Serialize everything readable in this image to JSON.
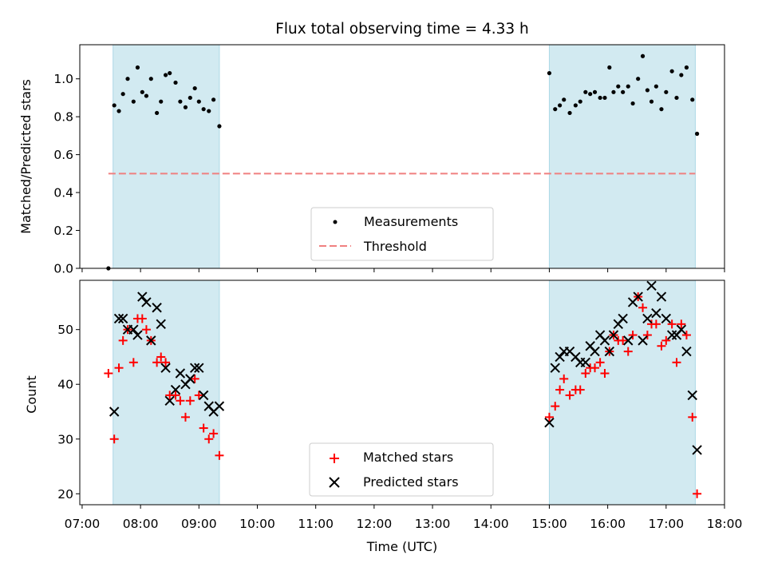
{
  "chart_data": [
    {
      "type": "scatter",
      "title": "Flux total observing time = 4.33 h",
      "ylabel": "Matched/Predicted stars",
      "xlabel": "",
      "xlim": [
        6.96,
        18.0
      ],
      "ylim": [
        0.0,
        1.18
      ],
      "yticks": [
        0.0,
        0.2,
        0.4,
        0.6,
        0.8,
        1.0
      ],
      "ytick_labels": [
        "0.0",
        "0.2",
        "0.4",
        "0.6",
        "0.8",
        "1.0"
      ],
      "shaded_spans": [
        [
          7.53,
          9.35
        ],
        [
          15.0,
          17.5
        ]
      ],
      "legend_location": "lower center",
      "threshold": {
        "name": "Threshold",
        "y": 0.5,
        "x_range": [
          7.45,
          17.5
        ],
        "color": "#f08080",
        "style": "dashed"
      },
      "series": [
        {
          "name": "Measurements",
          "marker": "dot",
          "color": "#000000",
          "x": [
            7.45,
            7.55,
            7.63,
            7.7,
            7.78,
            7.88,
            7.95,
            8.03,
            8.1,
            8.18,
            8.28,
            8.35,
            8.43,
            8.5,
            8.6,
            8.68,
            8.77,
            8.85,
            8.93,
            9.0,
            9.08,
            9.17,
            9.25,
            9.35,
            15.0,
            15.1,
            15.18,
            15.25,
            15.35,
            15.45,
            15.53,
            15.62,
            15.7,
            15.78,
            15.87,
            15.95,
            16.03,
            16.1,
            16.18,
            16.26,
            16.35,
            16.43,
            16.52,
            16.6,
            16.68,
            16.75,
            16.83,
            16.92,
            17.0,
            17.1,
            17.18,
            17.26,
            17.35,
            17.45,
            17.53
          ],
          "y": [
            0.0,
            0.86,
            0.83,
            0.92,
            1.0,
            0.88,
            1.06,
            0.93,
            0.91,
            1.0,
            0.82,
            0.88,
            1.02,
            1.03,
            0.98,
            0.88,
            0.85,
            0.9,
            0.95,
            0.88,
            0.84,
            0.83,
            0.89,
            0.75,
            1.03,
            0.84,
            0.86,
            0.89,
            0.82,
            0.86,
            0.88,
            0.93,
            0.92,
            0.93,
            0.9,
            0.9,
            1.06,
            0.93,
            0.96,
            0.93,
            0.96,
            0.87,
            1.0,
            1.12,
            0.94,
            0.88,
            0.96,
            0.84,
            0.93,
            1.04,
            0.9,
            1.02,
            1.06,
            0.89,
            0.71
          ]
        }
      ]
    },
    {
      "type": "scatter",
      "title": "",
      "ylabel": "Count",
      "xlabel": "Time (UTC)",
      "xlim": [
        6.96,
        18.0
      ],
      "ylim": [
        18,
        59
      ],
      "yticks": [
        20,
        30,
        40,
        50
      ],
      "ytick_labels": [
        "20",
        "30",
        "40",
        "50"
      ],
      "xticks": [
        7,
        8,
        9,
        10,
        11,
        12,
        13,
        14,
        15,
        16,
        17,
        18
      ],
      "xtick_labels": [
        "07:00",
        "08:00",
        "09:00",
        "10:00",
        "11:00",
        "12:00",
        "13:00",
        "14:00",
        "15:00",
        "16:00",
        "17:00",
        "18:00"
      ],
      "shaded_spans": [
        [
          7.53,
          9.35
        ],
        [
          15.0,
          17.5
        ]
      ],
      "legend_location": "lower center",
      "series": [
        {
          "name": "Matched stars",
          "marker": "plus",
          "color": "#ff0000",
          "x": [
            7.45,
            7.55,
            7.63,
            7.7,
            7.78,
            7.88,
            7.95,
            8.03,
            8.1,
            8.18,
            8.28,
            8.35,
            8.43,
            8.5,
            8.6,
            8.68,
            8.77,
            8.85,
            8.93,
            9.0,
            9.08,
            9.17,
            9.25,
            9.35,
            15.0,
            15.1,
            15.18,
            15.25,
            15.35,
            15.45,
            15.53,
            15.62,
            15.7,
            15.78,
            15.87,
            15.95,
            16.03,
            16.1,
            16.18,
            16.26,
            16.35,
            16.43,
            16.52,
            16.6,
            16.68,
            16.75,
            16.83,
            16.92,
            17.0,
            17.1,
            17.18,
            17.26,
            17.35,
            17.45,
            17.53
          ],
          "y": [
            42,
            30,
            43,
            48,
            50,
            44,
            52,
            52,
            50,
            48,
            44,
            45,
            44,
            38,
            38,
            37,
            34,
            37,
            41,
            38,
            32,
            30,
            31,
            27,
            34,
            36,
            39,
            41,
            38,
            39,
            39,
            42,
            43,
            43,
            44,
            42,
            46,
            49,
            48,
            48,
            46,
            49,
            56,
            54,
            49,
            51,
            51,
            47,
            48,
            51,
            44,
            51,
            49,
            34,
            20
          ]
        },
        {
          "name": "Predicted stars",
          "marker": "x",
          "color": "#000000",
          "x": [
            7.55,
            7.63,
            7.7,
            7.78,
            7.88,
            7.95,
            8.03,
            8.1,
            8.18,
            8.28,
            8.35,
            8.43,
            8.5,
            8.6,
            8.68,
            8.77,
            8.85,
            8.93,
            9.0,
            9.08,
            9.17,
            9.25,
            9.35,
            15.0,
            15.1,
            15.18,
            15.25,
            15.35,
            15.45,
            15.53,
            15.62,
            15.7,
            15.78,
            15.87,
            15.95,
            16.03,
            16.1,
            16.18,
            16.26,
            16.35,
            16.43,
            16.52,
            16.6,
            16.68,
            16.75,
            16.83,
            16.92,
            17.0,
            17.1,
            17.18,
            17.26,
            17.35,
            17.45,
            17.53
          ],
          "y": [
            35,
            52,
            52,
            50,
            50,
            49,
            56,
            55,
            48,
            54,
            51,
            43,
            37,
            39,
            42,
            40,
            41,
            43,
            43,
            38,
            36,
            35,
            36,
            33,
            43,
            45,
            46,
            46,
            45,
            44,
            44,
            47,
            46,
            49,
            48,
            46,
            49,
            51,
            52,
            48,
            55,
            56,
            48,
            52,
            58,
            53,
            56,
            52,
            49,
            49,
            50,
            46,
            38,
            28
          ]
        }
      ]
    }
  ],
  "colors": {
    "shade": "#add8e6",
    "threshold": "#f08080",
    "matched": "#ff0000",
    "predicted": "#000000",
    "measurements": "#000000"
  }
}
